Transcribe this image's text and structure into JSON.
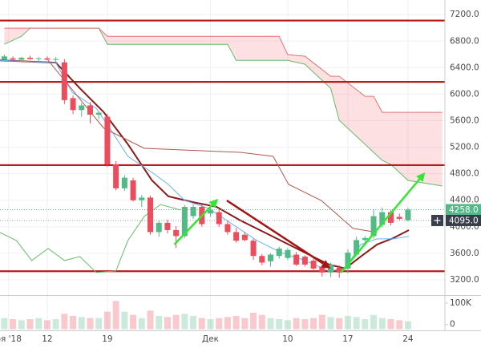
{
  "chart_data": {
    "type": "candlestick",
    "x": [
      -5,
      -4,
      -3,
      -2,
      -1,
      0,
      1,
      2,
      3,
      4,
      5,
      6,
      7,
      8,
      9,
      10,
      11,
      12,
      13,
      14,
      15,
      16,
      17,
      18,
      19,
      20,
      21,
      22,
      23,
      24,
      25,
      26,
      27,
      28,
      29,
      30,
      31,
      32,
      33,
      34,
      35,
      36,
      37,
      38,
      39,
      40,
      41,
      42
    ],
    "open": [
      6520,
      6540,
      6520,
      6550,
      6530,
      6540,
      6520,
      6480,
      5940,
      5760,
      5830,
      5690,
      5660,
      4940,
      4580,
      4700,
      4400,
      4440,
      3920,
      4060,
      3950,
      3860,
      4160,
      4300,
      4200,
      4220,
      4040,
      3920,
      3880,
      3790,
      3560,
      3480,
      3560,
      3530,
      3580,
      3550,
      3490,
      3400,
      3310,
      3380,
      3370,
      3580,
      3800,
      3860,
      4030,
      4220,
      4150,
      4100
    ],
    "high": [
      6600,
      6570,
      6560,
      6580,
      6560,
      6570,
      6560,
      6530,
      5980,
      5870,
      5880,
      5740,
      5700,
      4990,
      4780,
      4740,
      4480,
      4470,
      4100,
      4110,
      4010,
      4330,
      4340,
      4340,
      4330,
      4260,
      4090,
      3980,
      3920,
      3820,
      3590,
      3600,
      3700,
      3680,
      3620,
      3570,
      3520,
      3430,
      3460,
      3420,
      3660,
      3850,
      3860,
      4260,
      4290,
      4250,
      4200,
      4290
    ],
    "low": [
      6500,
      6500,
      6490,
      6520,
      6500,
      6510,
      6490,
      5850,
      5700,
      5660,
      5560,
      5620,
      4900,
      4550,
      4540,
      4380,
      4300,
      3880,
      3850,
      3900,
      3680,
      3830,
      4120,
      4000,
      4150,
      4000,
      3880,
      3760,
      3780,
      3500,
      3420,
      3400,
      3520,
      3500,
      3410,
      3400,
      3350,
      3250,
      3240,
      3230,
      3300,
      3560,
      3760,
      3820,
      3990,
      4020,
      4100,
      4080
    ],
    "close": [
      6570,
      6520,
      6550,
      6530,
      6540,
      6520,
      6530,
      5910,
      5760,
      5830,
      5690,
      5720,
      4940,
      4580,
      4740,
      4400,
      4440,
      3920,
      4060,
      3950,
      3860,
      4300,
      4300,
      4040,
      4250,
      4040,
      3920,
      3790,
      3800,
      3560,
      3460,
      3580,
      3670,
      3650,
      3430,
      3430,
      3370,
      3310,
      3430,
      3310,
      3610,
      3800,
      3830,
      4160,
      4220,
      4060,
      4120,
      4258
    ],
    "up_color": "#53b987",
    "down_color": "#eb4d5c",
    "xlim": [
      -5.5,
      46.3
    ],
    "xticks": [
      {
        "value": -4.5,
        "label": "оя '18"
      },
      {
        "value": 0,
        "label": "12"
      },
      {
        "value": 7,
        "label": "19"
      },
      {
        "value": 19,
        "label": "Дек"
      },
      {
        "value": 28,
        "label": "10"
      },
      {
        "value": 35,
        "label": "17"
      },
      {
        "value": 42,
        "label": "24"
      }
    ],
    "ylim": [
      2970,
      7420
    ],
    "yticks": [
      {
        "value": 3200,
        "label": "3200.0"
      },
      {
        "value": 3600,
        "label": "3600.0"
      },
      {
        "value": 4000,
        "label": "4000.0"
      },
      {
        "value": 4400,
        "label": "4400.0"
      },
      {
        "value": 4800,
        "label": "4800.0"
      },
      {
        "value": 5200,
        "label": "5200.0"
      },
      {
        "value": 5600,
        "label": "5600.0"
      },
      {
        "value": 6000,
        "label": "6000.0"
      },
      {
        "value": 6400,
        "label": "6400.0"
      },
      {
        "value": 6800,
        "label": "6800.0"
      },
      {
        "value": 7200,
        "label": "7200.0"
      }
    ],
    "grid": true,
    "levels": {
      "values": [
        7110,
        6185,
        4930,
        3330
      ],
      "color": "#b71c1c"
    },
    "cloud": {
      "x": [
        -5,
        -3,
        -2,
        6,
        7,
        21,
        22,
        27,
        28,
        30,
        33,
        34,
        37,
        38,
        39,
        40,
        42,
        46
      ],
      "span_a": [
        6753,
        6874,
        6995,
        6995,
        6753,
        6753,
        6511,
        6511,
        6511,
        6451,
        6089,
        5605,
        5243,
        5122,
        5001,
        4941,
        4699,
        4615
      ],
      "span_b": [
        6995,
        6995,
        6995,
        6995,
        6874,
        6874,
        6874,
        6874,
        6596,
        6572,
        6270,
        6270,
        5968,
        5968,
        5726,
        5726,
        5726,
        5726
      ],
      "span_a_color": "#66bb6a",
      "span_b_color": "#e57373",
      "fill": "rgba(244,143,150,0.28)"
    },
    "lines": [
      {
        "x": [
          -5.5,
          1.0,
          3.8,
          6.6,
          9.4,
          12.2,
          14.1,
          16.9,
          19.7,
          22.5,
          25.3,
          28.1,
          30.9,
          32.8,
          34.7,
          36.5,
          38.4,
          40.3,
          42.1
        ],
        "values": [
          6511,
          6475,
          6089,
          5726,
          5243,
          4699,
          4458,
          4373,
          4301,
          4095,
          3914,
          3733,
          3552,
          3431,
          3371,
          3552,
          3733,
          3830,
          3950
        ],
        "color": "#8b1a1a"
      },
      {
        "x": [
          -5.5,
          1.0,
          2.9,
          5.7,
          7.6,
          9.4,
          12.2,
          14.1,
          16.0,
          18.8,
          21.6,
          24.4,
          27.2,
          30.0,
          32.8,
          34.7,
          36.5,
          38.4,
          40.3,
          42.1
        ],
        "values": [
          6511,
          6475,
          6028,
          5787,
          5424,
          5062,
          4820,
          4639,
          4397,
          4277,
          4035,
          3793,
          3612,
          3491,
          3334,
          3371,
          3733,
          3818,
          3818,
          3854
        ],
        "color": "#64b5f6"
      },
      {
        "x": [
          -5.5,
          -3.6,
          -1.8,
          0.1,
          2.0,
          3.8,
          5.7,
          8.0,
          9.4,
          11.3,
          13.2,
          15.5
        ],
        "values": [
          3914,
          3793,
          3491,
          3673,
          3491,
          3552,
          3310,
          3334,
          3793,
          4156,
          4337,
          4253
        ],
        "color": "#66bb6a"
      },
      {
        "x": [
          0.1,
          2.0,
          6.6,
          11.3,
          22.5,
          26.3,
          28.1,
          31.9,
          35.6,
          38.4
        ],
        "values": [
          6511,
          6209,
          5485,
          5183,
          5122,
          5062,
          4639,
          4397,
          3975,
          3914
        ],
        "color": "#b0574f"
      }
    ],
    "arrows": [
      {
        "x": [
          14.8,
          19.9
        ],
        "values": [
          3733,
          4422
        ],
        "color": "#33e633"
      },
      {
        "x": [
          20.9,
          33.0
        ],
        "values": [
          4397,
          3371
        ],
        "color": "#a31515"
      },
      {
        "x": [
          34.2,
          44.0
        ],
        "values": [
          3310,
          4820
        ],
        "color": "#33e633"
      }
    ],
    "price_labels": [
      {
        "value": 4258,
        "label": "4258.0",
        "color": "#53b987"
      },
      {
        "value": 4095,
        "label": "4095.0",
        "color": "#3a3e4a"
      }
    ],
    "volume": {
      "values": [
        30000,
        25000,
        20000,
        25000,
        30000,
        20000,
        25000,
        50000,
        40000,
        35000,
        30000,
        30000,
        60000,
        110000,
        60000,
        45000,
        30000,
        65000,
        40000,
        35000,
        45000,
        50000,
        40000,
        30000,
        25000,
        30000,
        35000,
        40000,
        30000,
        55000,
        45000,
        30000,
        25000,
        20000,
        30000,
        25000,
        30000,
        45000,
        35000,
        30000,
        40000,
        35000,
        25000,
        45000,
        30000,
        25000,
        20000,
        15000
      ],
      "ylim": [
        -20000,
        130000
      ],
      "yticks": [
        0,
        {
          "value": 100000,
          "label": "100K"
        }
      ]
    }
  }
}
